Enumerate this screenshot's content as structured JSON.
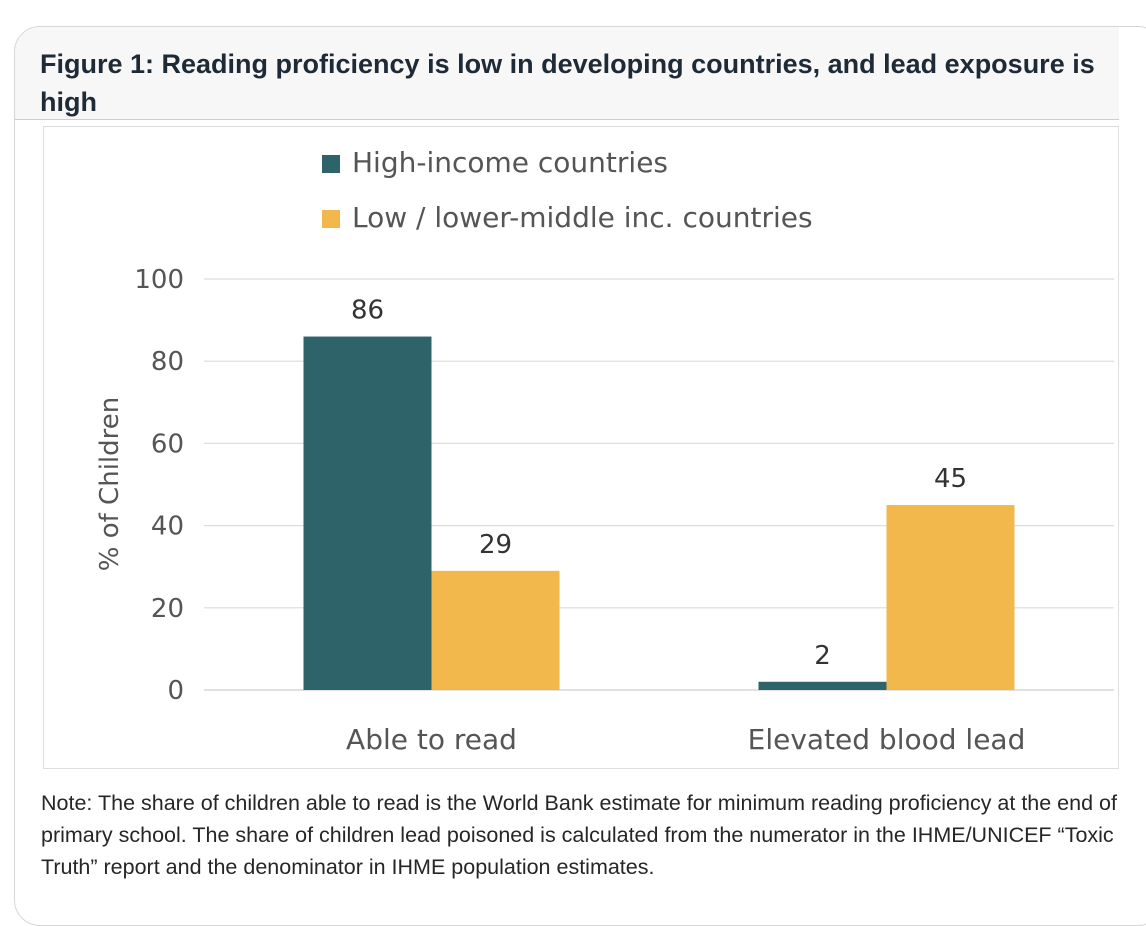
{
  "figure": {
    "title": "Figure 1: Reading proficiency is low in developing countries, and lead exposure is high",
    "note": "Note: The share of children able to read is the World Bank estimate for minimum reading proficiency at the end of primary school. The share of children lead poisoned is calculated from the numerator in the IHME/UNICEF “Toxic Truth” report and the denominator in IHME population estimates."
  },
  "chart_data": {
    "type": "bar",
    "title": "",
    "categories": [
      "Able to read",
      "Elevated blood lead"
    ],
    "series": [
      {
        "name": "High-income countries",
        "values": [
          86,
          2
        ],
        "color": "#2e6469"
      },
      {
        "name": "Low / lower-middle inc. countries",
        "values": [
          29,
          45
        ],
        "color": "#f3b84b"
      }
    ],
    "xlabel": "",
    "ylabel": "% of Children",
    "ylim": [
      0,
      100
    ],
    "yticks": [
      0,
      20,
      40,
      60,
      80,
      100
    ],
    "grid": true,
    "legend": "top",
    "data_labels": true
  }
}
